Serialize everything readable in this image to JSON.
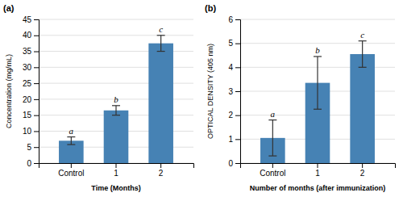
{
  "chart_data": [
    {
      "type": "bar",
      "title": "(a)",
      "categories": [
        "Control",
        "1",
        "2"
      ],
      "values": [
        7.0,
        16.5,
        37.5
      ],
      "errors": [
        1.2,
        1.5,
        2.5
      ],
      "annotations": [
        "a",
        "b",
        "c"
      ],
      "ylabel": "Concentration (mg/mL)",
      "xlabel": "Time (Months)",
      "ylim": [
        0,
        45
      ],
      "yticks": [
        0,
        5,
        10,
        15,
        20,
        25,
        30,
        35,
        40,
        45
      ],
      "grid": true
    },
    {
      "type": "bar",
      "title": "(b)",
      "categories": [
        "Control",
        "1",
        "2"
      ],
      "values": [
        1.05,
        3.35,
        4.55
      ],
      "errors": [
        0.75,
        1.1,
        0.55
      ],
      "annotations": [
        "a",
        "b",
        "c"
      ],
      "ylabel": "OPTICAL DENSITY (405 nm)",
      "xlabel": "Number of months (after immunization)",
      "ylim": [
        0,
        6
      ],
      "yticks": [
        0,
        1,
        2,
        3,
        4,
        5,
        6
      ],
      "grid": true
    }
  ]
}
